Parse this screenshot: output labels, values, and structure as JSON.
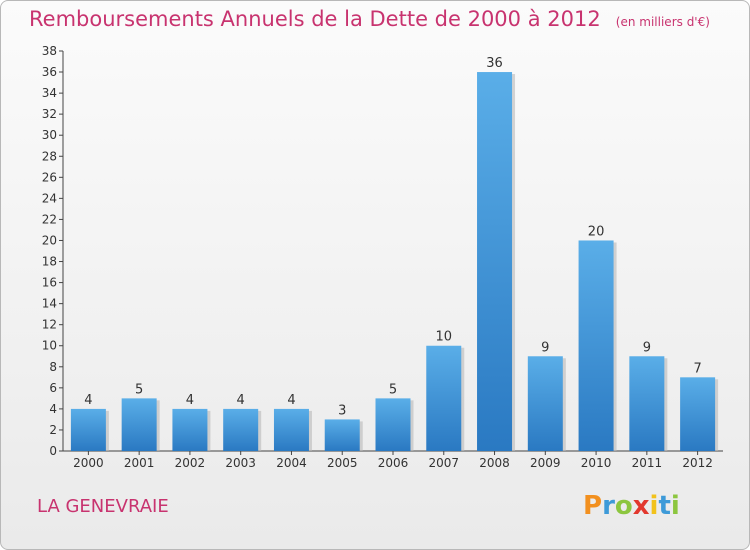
{
  "chart_data": {
    "type": "bar",
    "title": "Remboursements Annuels de la Dette de 2000 à 2012",
    "subtitle": "(en milliers d'€)",
    "categories": [
      "2000",
      "2001",
      "2002",
      "2003",
      "2004",
      "2005",
      "2006",
      "2007",
      "2008",
      "2009",
      "2010",
      "2011",
      "2012"
    ],
    "values": [
      4,
      5,
      4,
      4,
      4,
      3,
      5,
      10,
      36,
      9,
      20,
      9,
      7
    ],
    "ylim": [
      0,
      38
    ],
    "yticks": [
      0,
      2,
      4,
      6,
      8,
      10,
      12,
      14,
      16,
      18,
      20,
      22,
      24,
      26,
      28,
      30,
      32,
      34,
      36,
      38
    ],
    "grid": false,
    "legend": "none",
    "bar_color": "#3f8fd2",
    "data_labels": true
  },
  "footer": {
    "place_name": "LA GENEVRAIE",
    "brand_text": "Proxiti",
    "brand_colors": [
      "#f2901f",
      "#3d9ad8",
      "#8cc63f",
      "#e2382e",
      "#f2c21b",
      "#3d9ad8",
      "#8cc63f"
    ]
  },
  "colors": {
    "accent": "#c8336f",
    "axis": "#333333",
    "text": "#333333"
  }
}
